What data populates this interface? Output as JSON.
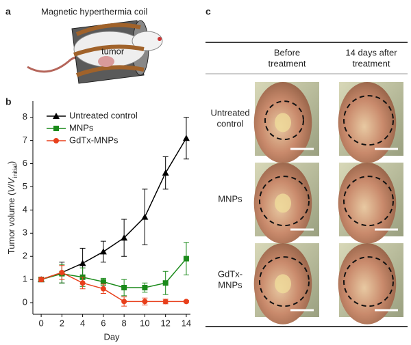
{
  "panel_labels": [
    "a",
    "b",
    "c"
  ],
  "illustration": {
    "title": "Magnetic hyperthermia coil",
    "tumor_label": "tumor"
  },
  "chart_data": {
    "type": "line",
    "xlabel": "Day",
    "ylabel": [
      "Tumor volume (",
      "V",
      "/",
      "V",
      "initial",
      ")"
    ],
    "x": [
      0,
      2,
      4,
      6,
      8,
      10,
      12,
      14
    ],
    "xlim": [
      -0.8,
      14.4
    ],
    "xticks": [
      0,
      2,
      4,
      6,
      8,
      10,
      12,
      14
    ],
    "ylim": [
      -0.5,
      8.7
    ],
    "yticks": [
      0,
      1,
      2,
      3,
      4,
      5,
      6,
      7,
      8
    ],
    "legend": "upper left",
    "series": [
      {
        "name": "Untreated control",
        "color": "#000000",
        "marker": "triangle",
        "values": [
          1,
          1.3,
          1.7,
          2.2,
          2.8,
          3.7,
          5.6,
          7.1
        ],
        "errors": [
          0.1,
          0.45,
          0.65,
          0.45,
          0.8,
          1.2,
          0.7,
          0.9
        ]
      },
      {
        "name": "MNPs",
        "color": "#1a8a1a",
        "marker": "square",
        "values": [
          1,
          1.25,
          1.1,
          0.9,
          0.65,
          0.65,
          0.85,
          1.9
        ],
        "errors": [
          0.1,
          0.4,
          0.4,
          0.15,
          0.35,
          0.2,
          0.5,
          0.7
        ]
      },
      {
        "name": "GdTx-MNPs",
        "color": "#e8401c",
        "marker": "circle",
        "values": [
          1,
          1.3,
          0.85,
          0.6,
          0.05,
          0.05,
          0.05,
          0.05
        ],
        "errors": [
          0.1,
          0.3,
          0.25,
          0.2,
          0.2,
          0.15,
          0.1,
          0.05
        ]
      }
    ]
  },
  "photo_table": {
    "columns": [
      [
        "Before",
        "treatment"
      ],
      [
        "14 days after",
        "treatment"
      ]
    ],
    "rows": [
      [
        "Untreated",
        "control"
      ],
      [
        "MNPs"
      ],
      [
        "GdTx-",
        "MNPs"
      ]
    ]
  }
}
